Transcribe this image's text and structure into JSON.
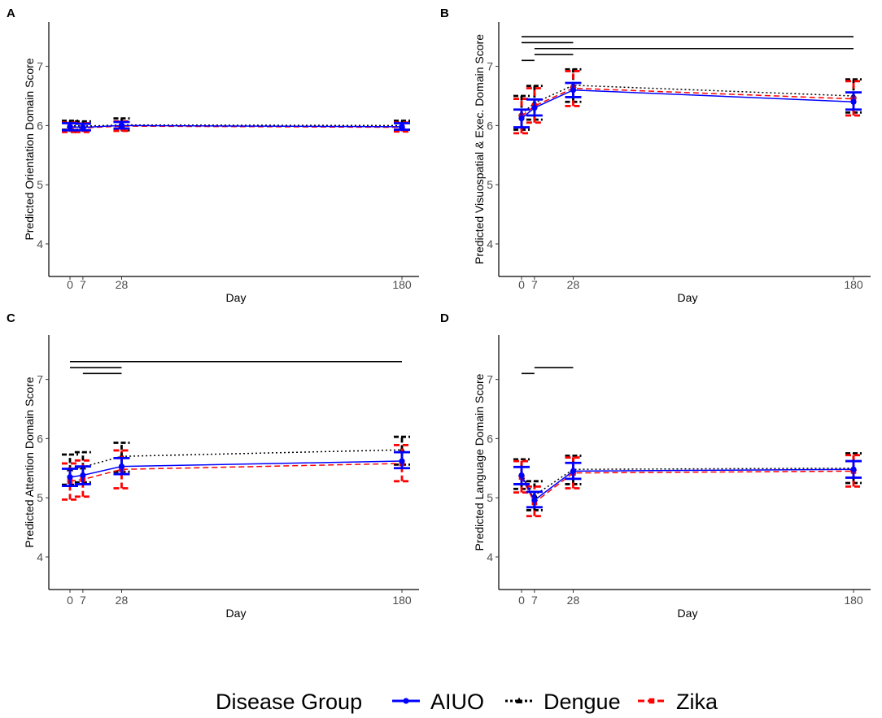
{
  "chart_data": [
    {
      "panel": "A",
      "type": "line",
      "xlabel": "Day",
      "ylabel": "Predicted Orientation Domain Score",
      "x": [
        0,
        7,
        28,
        180
      ],
      "x_tick_labels": [
        "0",
        "7",
        "28",
        "180"
      ],
      "y_ticks": [
        4,
        5,
        6,
        7
      ],
      "ylim": [
        3.45,
        7.75
      ],
      "series": [
        {
          "name": "AIUO",
          "values": [
            5.98,
            5.97,
            6.0,
            5.98
          ],
          "lower": [
            5.92,
            5.92,
            5.95,
            5.93
          ],
          "upper": [
            6.04,
            6.03,
            6.06,
            6.04
          ]
        },
        {
          "name": "Dengue",
          "values": [
            6.0,
            5.99,
            6.01,
            6.0
          ],
          "lower": [
            5.93,
            5.92,
            5.92,
            5.93
          ],
          "upper": [
            6.08,
            6.07,
            6.12,
            6.08
          ]
        },
        {
          "name": "Zika",
          "values": [
            5.97,
            5.96,
            5.99,
            5.97
          ],
          "lower": [
            5.89,
            5.89,
            5.91,
            5.9
          ],
          "upper": [
            6.05,
            6.04,
            6.07,
            6.05
          ]
        }
      ],
      "significance": []
    },
    {
      "panel": "B",
      "type": "line",
      "xlabel": "Day",
      "ylabel": "Predicted Visuospatial & Exec. Domain Score",
      "x": [
        0,
        7,
        28,
        180
      ],
      "x_tick_labels": [
        "0",
        "7",
        "28",
        "180"
      ],
      "y_ticks": [
        4,
        5,
        6,
        7
      ],
      "ylim": [
        3.45,
        7.75
      ],
      "series": [
        {
          "name": "AIUO",
          "values": [
            6.12,
            6.3,
            6.6,
            6.4
          ],
          "lower": [
            5.97,
            6.17,
            6.48,
            6.27
          ],
          "upper": [
            6.27,
            6.44,
            6.72,
            6.56
          ]
        },
        {
          "name": "Dengue",
          "values": [
            6.2,
            6.38,
            6.68,
            6.5
          ],
          "lower": [
            5.93,
            6.1,
            6.4,
            6.22
          ],
          "upper": [
            6.5,
            6.67,
            6.95,
            6.78
          ]
        },
        {
          "name": "Zika",
          "values": [
            6.16,
            6.33,
            6.63,
            6.45
          ],
          "lower": [
            5.87,
            6.05,
            6.33,
            6.17
          ],
          "upper": [
            6.45,
            6.63,
            6.92,
            6.75
          ]
        }
      ],
      "significance": [
        {
          "x1": 0,
          "x2": 180,
          "y": 7.5
        },
        {
          "x1": 0,
          "x2": 28,
          "y": 7.4
        },
        {
          "x1": 7,
          "x2": 180,
          "y": 7.3
        },
        {
          "x1": 7,
          "x2": 28,
          "y": 7.2
        },
        {
          "x1": 0,
          "x2": 7,
          "y": 7.1
        }
      ]
    },
    {
      "panel": "C",
      "type": "line",
      "xlabel": "Day",
      "ylabel": "Predicted Attention Domain Score",
      "x": [
        0,
        7,
        28,
        180
      ],
      "x_tick_labels": [
        "0",
        "7",
        "28",
        "180"
      ],
      "y_ticks": [
        4,
        5,
        6,
        7
      ],
      "ylim": [
        3.45,
        7.75
      ],
      "series": [
        {
          "name": "AIUO",
          "values": [
            5.35,
            5.38,
            5.53,
            5.62
          ],
          "lower": [
            5.2,
            5.23,
            5.4,
            5.5
          ],
          "upper": [
            5.49,
            5.53,
            5.67,
            5.77
          ]
        },
        {
          "name": "Dengue",
          "values": [
            5.49,
            5.52,
            5.7,
            5.81
          ],
          "lower": [
            5.22,
            5.26,
            5.44,
            5.56
          ],
          "upper": [
            5.73,
            5.77,
            5.93,
            6.03
          ]
        },
        {
          "name": "Zika",
          "values": [
            5.28,
            5.31,
            5.48,
            5.58
          ],
          "lower": [
            4.97,
            5.02,
            5.16,
            5.28
          ],
          "upper": [
            5.58,
            5.63,
            5.8,
            5.89
          ]
        }
      ],
      "significance": [
        {
          "x1": 0,
          "x2": 180,
          "y": 7.3
        },
        {
          "x1": 0,
          "x2": 28,
          "y": 7.2
        },
        {
          "x1": 7,
          "x2": 28,
          "y": 7.1
        }
      ]
    },
    {
      "panel": "D",
      "type": "line",
      "xlabel": "Day",
      "ylabel": "Predicted Language Domain Score",
      "x": [
        0,
        7,
        28,
        180
      ],
      "x_tick_labels": [
        "0",
        "7",
        "28",
        "180"
      ],
      "y_ticks": [
        4,
        5,
        6,
        7
      ],
      "ylim": [
        3.45,
        7.75
      ],
      "series": [
        {
          "name": "AIUO",
          "values": [
            5.38,
            4.96,
            5.45,
            5.48
          ],
          "lower": [
            5.23,
            4.84,
            5.32,
            5.34
          ],
          "upper": [
            5.52,
            5.1,
            5.59,
            5.62
          ]
        },
        {
          "name": "Dengue",
          "values": [
            5.4,
            5.04,
            5.48,
            5.5
          ],
          "lower": [
            5.15,
            4.79,
            5.23,
            5.25
          ],
          "upper": [
            5.65,
            5.28,
            5.71,
            5.75
          ]
        },
        {
          "name": "Zika",
          "values": [
            5.35,
            4.92,
            5.42,
            5.45
          ],
          "lower": [
            5.09,
            4.69,
            5.16,
            5.19
          ],
          "upper": [
            5.62,
            5.19,
            5.68,
            5.72
          ]
        }
      ],
      "significance": [
        {
          "x1": 7,
          "x2": 28,
          "y": 7.2
        },
        {
          "x1": 0,
          "x2": 7,
          "y": 7.1
        }
      ]
    }
  ],
  "legend": {
    "title": "Disease Group",
    "items": [
      {
        "label": "AIUO",
        "color": "#0000ff",
        "marker": "circle",
        "dash": "solid"
      },
      {
        "label": "Dengue",
        "color": "#000000",
        "marker": "triangle",
        "dash": "dotted"
      },
      {
        "label": "Zika",
        "color": "#ff0000",
        "marker": "square",
        "dash": "dashed"
      }
    ]
  }
}
